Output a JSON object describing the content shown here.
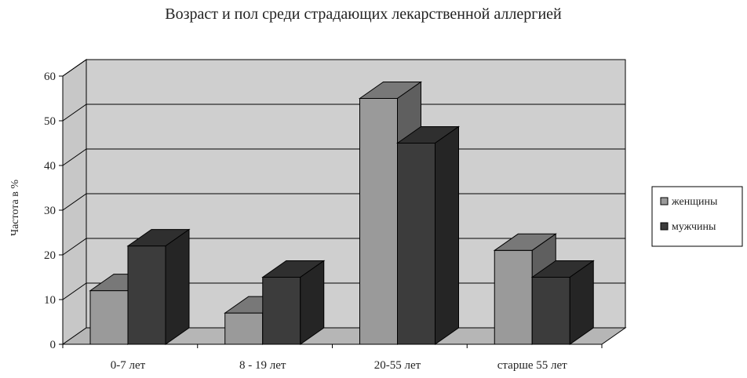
{
  "chart_data": {
    "type": "bar",
    "title": "Возраст и пол среди страдающих лекарственной аллергией",
    "xlabel": "",
    "ylabel": "Частота в %",
    "categories": [
      "0-7 лет",
      "8 - 19 лет",
      "20-55 лет",
      "старше 55 лет"
    ],
    "series": [
      {
        "name": "женщины",
        "values": [
          12,
          7,
          55,
          21
        ],
        "color": "#9a9a9a"
      },
      {
        "name": "мужчины",
        "values": [
          22,
          15,
          45,
          15
        ],
        "color": "#3c3c3c"
      }
    ],
    "ylim": [
      0,
      60
    ],
    "yticks": [
      0,
      10,
      20,
      30,
      40,
      50,
      60
    ],
    "grid": true,
    "legend": "right",
    "style": "3d-clustered-column",
    "wall_color": "#cfcfcf"
  }
}
